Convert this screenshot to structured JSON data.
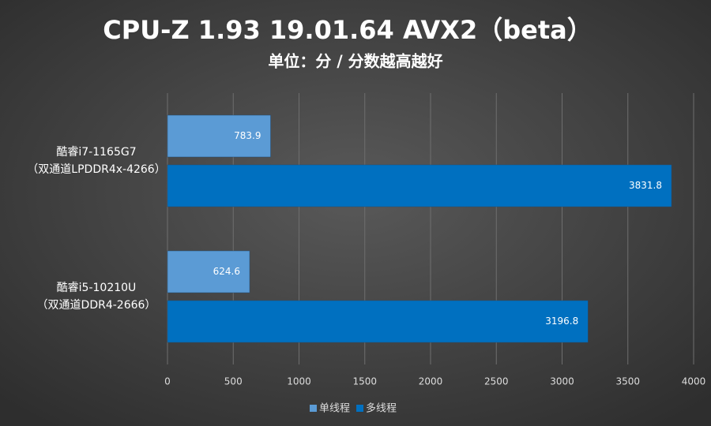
{
  "chart_data": {
    "type": "hbar",
    "title": "CPU-Z 1.93 19.01.64 AVX2（beta）",
    "subtitle": "单位：分 / 分数越高越好",
    "categories": [
      [
        "酷睿i7-1165G7",
        "（双通道LPDDR4x-4266）"
      ],
      [
        "酷睿i5-10210U",
        "（双通道DDR4-2666）"
      ]
    ],
    "series": [
      {
        "name": "单线程",
        "color": "#5b9bd5",
        "values": [
          783.9,
          624.6
        ]
      },
      {
        "name": "多线程",
        "color": "#0070c0",
        "values": [
          3831.8,
          3196.8
        ]
      }
    ],
    "xlim": [
      0,
      4000
    ],
    "xticks": [
      0,
      500,
      1000,
      1500,
      2000,
      2500,
      3000,
      3500,
      4000
    ],
    "grid": true,
    "legend": "bottom"
  }
}
